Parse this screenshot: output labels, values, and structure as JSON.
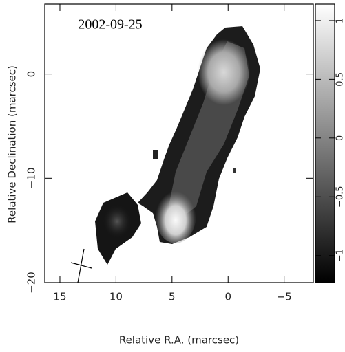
{
  "chart_data": {
    "type": "image",
    "annotation": "2002-09-25",
    "x_label": "Relative R.A. (marcsec)",
    "y_label": "Relative Declination (marcsec)",
    "xlim": [
      16.35,
      -7.6
    ],
    "xticks": [
      15,
      10,
      5,
      0,
      {
        "value": -5,
        "label": "−5"
      }
    ],
    "ylim": [
      -20,
      6.7
    ],
    "yticks": [
      0,
      {
        "value": -10,
        "label": "−10"
      },
      {
        "value": -20,
        "label": "−20"
      }
    ],
    "colorbar": {
      "lim": [
        -1.23,
        1.14
      ],
      "ticks": [
        {
          "value": -1,
          "label": "−1"
        },
        {
          "value": -0.5,
          "label": "−0.5"
        },
        0,
        0.5,
        1
      ]
    }
  }
}
